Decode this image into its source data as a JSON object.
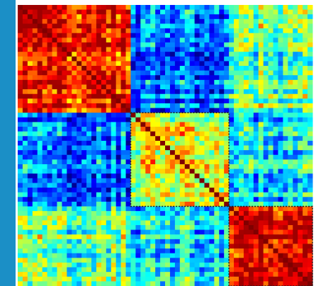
{
  "chart_data": {
    "type": "heatmap",
    "title": "",
    "xlabel": "",
    "ylabel": "",
    "n_nodes": 60,
    "diagonal_value": 1.0,
    "blocks": [
      {
        "start_index": 0,
        "end_index": 23,
        "mean_within": 0.82,
        "outline": "none"
      },
      {
        "start_index": 23,
        "end_index": 43,
        "mean_within": 0.55,
        "outline": "dotted"
      },
      {
        "start_index": 43,
        "end_index": 60,
        "mean_within": 0.86,
        "outline": "dotted"
      }
    ],
    "between_block_mean": [
      [
        0.82,
        0.22,
        0.48
      ],
      [
        0.22,
        0.55,
        0.36
      ],
      [
        0.48,
        0.36,
        0.86
      ]
    ],
    "value_range": [
      0,
      1
    ],
    "colormap": "jet",
    "grid": false
  },
  "colors": {
    "side_bar": "#1b8fc6",
    "frame": "#ffffff",
    "diagonal": "#7f0000",
    "block_outline": "#222222"
  }
}
